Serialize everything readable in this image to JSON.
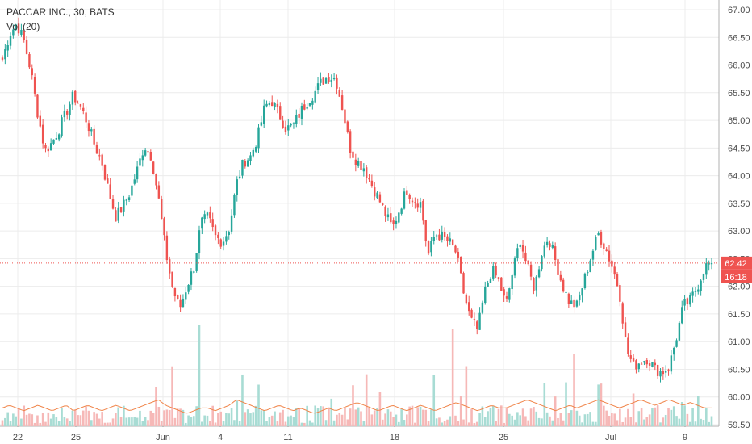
{
  "chart_data": {
    "type": "candlestick",
    "title": "PACCAR INC., 30, BATS",
    "volume_label": "Vol (20)",
    "ylim": [
      59.5,
      67.0
    ],
    "y_ticks": [
      "67.00",
      "66.50",
      "66.00",
      "65.50",
      "65.00",
      "64.50",
      "64.00",
      "63.50",
      "63.00",
      "62.50",
      "62.00",
      "61.50",
      "61.00",
      "60.50",
      "60.00",
      "59.50"
    ],
    "x_ticks": [
      "22",
      "25",
      "Jun",
      "4",
      "11",
      "18",
      "25",
      "Jul",
      "9"
    ],
    "last_price": "62.42",
    "countdown": "16:18",
    "colors": {
      "up": "#26a69a",
      "down": "#ef5350",
      "up_volume": "#a8dcd4",
      "down_volume": "#f6b8b7",
      "ma_line": "#f0854a",
      "last_line": "#ef5350",
      "grid": "#ececec"
    },
    "price_path": [
      66.1,
      66.55,
      66.75,
      66.45,
      65.9,
      65.1,
      64.45,
      64.6,
      64.85,
      65.15,
      65.45,
      65.25,
      64.95,
      64.55,
      64.25,
      63.7,
      63.25,
      63.45,
      63.7,
      64.1,
      64.55,
      64.35,
      63.6,
      62.65,
      61.95,
      61.6,
      62.0,
      62.35,
      63.15,
      63.25,
      62.9,
      62.8,
      63.05,
      63.85,
      64.25,
      64.35,
      64.7,
      65.25,
      65.35,
      65.1,
      64.85,
      64.9,
      65.15,
      65.35,
      65.5,
      65.7,
      65.8,
      65.75,
      65.2,
      64.5,
      64.25,
      64.15,
      63.85,
      63.6,
      63.3,
      63.05,
      63.4,
      63.75,
      63.55,
      63.5,
      62.55,
      62.95,
      62.9,
      62.8,
      62.6,
      61.9,
      61.4,
      61.2,
      61.9,
      62.3,
      62.1,
      61.65,
      62.3,
      62.85,
      62.35,
      61.95,
      62.6,
      62.9,
      62.45,
      62.0,
      61.7,
      61.65,
      62.1,
      62.55,
      62.95,
      62.7,
      62.35,
      61.9,
      60.85,
      60.55,
      60.65,
      60.7,
      60.5,
      60.45,
      60.55,
      61.05,
      61.65,
      61.75,
      62.0,
      62.35,
      62.42
    ],
    "ma_level": [
      59.8,
      59.85,
      59.8,
      59.75,
      59.8,
      59.85,
      59.8,
      59.75,
      59.8,
      59.85,
      59.75,
      59.8,
      59.85,
      59.8,
      59.75,
      59.8,
      59.85,
      59.8,
      59.75,
      59.8,
      59.85,
      59.9,
      59.95,
      59.85,
      59.8,
      59.75,
      59.7,
      59.75,
      59.8,
      59.8,
      59.75,
      59.8,
      59.85,
      59.95,
      59.9,
      59.85,
      59.8,
      59.75,
      59.8,
      59.85,
      59.8,
      59.75,
      59.8,
      59.75,
      59.7,
      59.75,
      59.8,
      59.75,
      59.8,
      59.85,
      59.9,
      59.85,
      59.8,
      59.75,
      59.8,
      59.85,
      59.8,
      59.75,
      59.8,
      59.85,
      59.8,
      59.75,
      59.8,
      59.85,
      59.9,
      59.85,
      59.8,
      59.75,
      59.8,
      59.85,
      59.8,
      59.8,
      59.85,
      59.9,
      59.95,
      59.9,
      59.85,
      59.8,
      59.75,
      59.8,
      59.85,
      59.8,
      59.85,
      59.9,
      59.95,
      59.9,
      59.85,
      59.8,
      59.85,
      59.9,
      59.95,
      59.9,
      59.85,
      59.9,
      59.95,
      59.9,
      59.85,
      59.9,
      59.85,
      59.8,
      59.8
    ]
  }
}
